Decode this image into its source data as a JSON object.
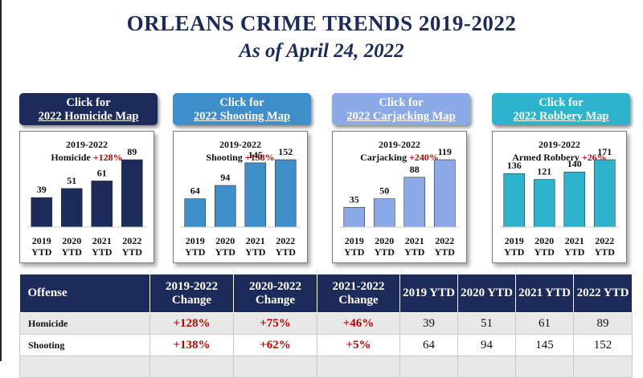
{
  "title": "ORLEANS CRIME TRENDS 2019-2022",
  "subtitle": "As of April 24, 2022",
  "cards": [
    {
      "button_line1": "Click for",
      "button_line2": "2022 Homicide Map",
      "button_color": "#1c2b5a",
      "bar_color": "#1c2b5a"
    },
    {
      "button_line1": "Click for",
      "button_line2": "2022 Shooting Map",
      "button_color": "#3d8ec9",
      "bar_color": "#3d8ec9"
    },
    {
      "button_line1": "Click for",
      "button_line2": "2022 Carjacking Map",
      "button_color": "#8aa9e6",
      "bar_color": "#8aa9e6"
    },
    {
      "button_line1": "Click for",
      "button_line2": "2022 Robbery Map",
      "button_color": "#2eb3cc",
      "bar_color": "#2eb3cc"
    }
  ],
  "chart_data": [
    {
      "type": "bar",
      "title": "2019-2022",
      "label": "Homicide",
      "change": "+128%",
      "categories": [
        "2019 YTD",
        "2020 YTD",
        "2021 YTD",
        "2022 YTD"
      ],
      "values": [
        39,
        51,
        61,
        89
      ]
    },
    {
      "type": "bar",
      "title": "2019-2022",
      "label": "Shooting",
      "change": "+138%",
      "categories": [
        "2019 YTD",
        "2020 YTD",
        "2021 YTD",
        "2022 YTD"
      ],
      "values": [
        64,
        94,
        145,
        152
      ]
    },
    {
      "type": "bar",
      "title": "2019-2022",
      "label": "Carjacking",
      "change": "+240%",
      "categories": [
        "2019 YTD",
        "2020 YTD",
        "2021 YTD",
        "2022 YTD"
      ],
      "values": [
        35,
        50,
        88,
        119
      ]
    },
    {
      "type": "bar",
      "title": "2019-2022",
      "label": "Armed Robbery",
      "change": "+26%",
      "categories": [
        "2019 YTD",
        "2020 YTD",
        "2021 YTD",
        "2022 YTD"
      ],
      "values": [
        136,
        121,
        140,
        171
      ]
    }
  ],
  "table": {
    "headers": [
      "Offense",
      "2019-2022 Change",
      "2020-2022 Change",
      "2021-2022 Change",
      "2019 YTD",
      "2020 YTD",
      "2021 YTD",
      "2022 YTD"
    ],
    "rows": [
      [
        "Homicide",
        "+128%",
        "+75%",
        "+46%",
        "39",
        "51",
        "61",
        "89"
      ],
      [
        "Shooting",
        "+138%",
        "+62%",
        "+5%",
        "64",
        "94",
        "145",
        "152"
      ]
    ]
  },
  "colors": {
    "navy": "#1c2b5a",
    "red": "#c00000"
  }
}
